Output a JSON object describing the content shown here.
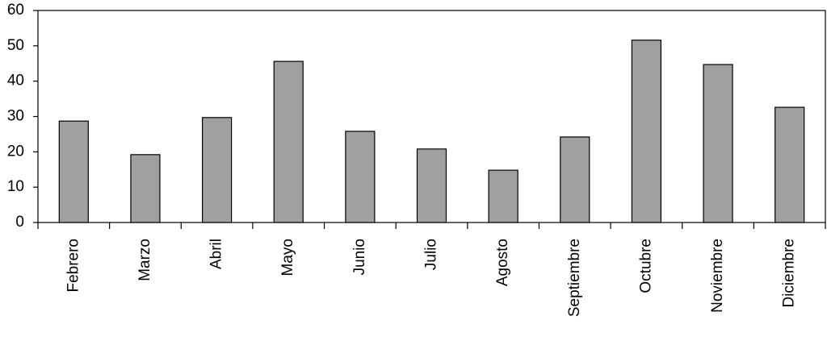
{
  "chart_data": {
    "type": "bar",
    "categories": [
      "Febrero",
      "Marzo",
      "Abril",
      "Mayo",
      "Junio",
      "Julio",
      "Agosto",
      "Septiembre",
      "Octubre",
      "Noviembre",
      "Diciembre"
    ],
    "values": [
      28.7,
      19.2,
      29.7,
      45.6,
      25.8,
      20.8,
      14.8,
      24.2,
      51.6,
      44.7,
      32.6
    ],
    "color": "#a0a0a0",
    "ylim": [
      0,
      60
    ],
    "yticks": [
      0,
      10,
      20,
      30,
      40,
      50,
      60
    ],
    "grid": false
  }
}
